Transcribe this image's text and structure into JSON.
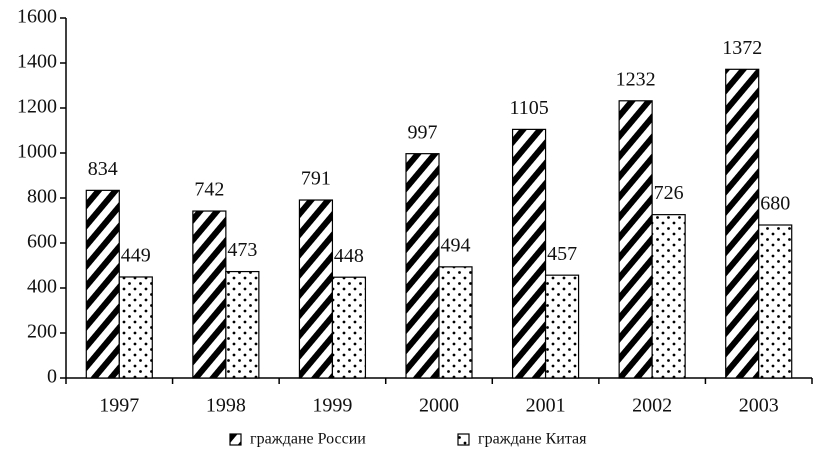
{
  "chart_data": {
    "type": "bar",
    "categories": [
      "1997",
      "1998",
      "1999",
      "2000",
      "2001",
      "2002",
      "2003"
    ],
    "series": [
      {
        "name": "граждане России",
        "color": "#000000",
        "pattern": "hatch",
        "values": [
          834,
          742,
          791,
          997,
          1105,
          1232,
          1372
        ]
      },
      {
        "name": "граждане Китая",
        "color": "#000000",
        "pattern": "dots",
        "values": [
          449,
          473,
          448,
          494,
          457,
          726,
          680
        ]
      }
    ],
    "ylim": [
      0,
      1600
    ],
    "yticks": [
      0,
      200,
      400,
      600,
      800,
      1000,
      1200,
      1400,
      1600
    ],
    "grid": false,
    "legend": "bottom"
  }
}
